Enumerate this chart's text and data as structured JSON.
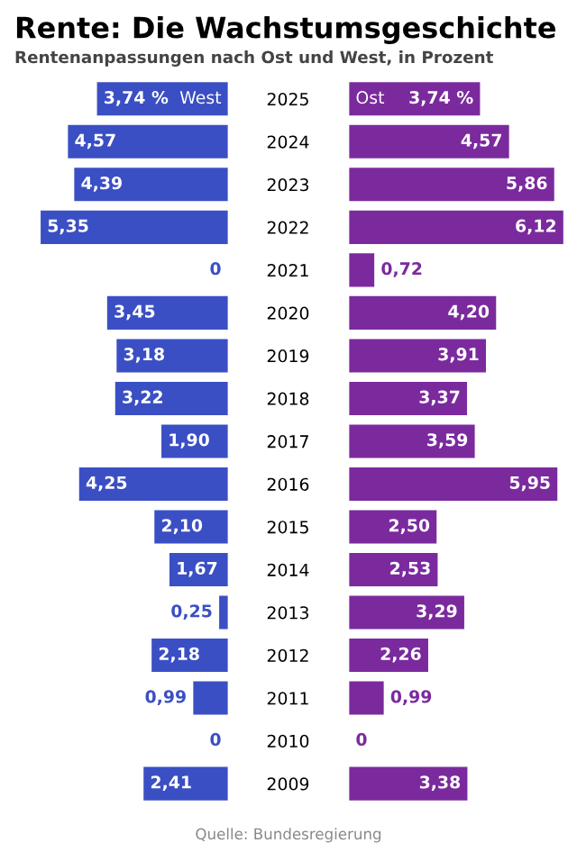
{
  "chart_data": [
    {
      "type": "bar",
      "orientation": "horizontal",
      "title": "Rente: Die Wachstumsgeschichte",
      "subtitle": "Rentenanpassungen nach Ost und West, in Prozent",
      "categories": [
        "2025",
        "2024",
        "2023",
        "2022",
        "2021",
        "2020",
        "2019",
        "2018",
        "2017",
        "2016",
        "2015",
        "2014",
        "2013",
        "2012",
        "2011",
        "2010",
        "2009"
      ],
      "tick_labels": "y",
      "legend": false,
      "grid": false,
      "series": [
        {
          "name": "West",
          "color": "#3b4fc4",
          "values": [
            3.74,
            4.57,
            4.39,
            5.35,
            0,
            3.45,
            3.18,
            3.22,
            1.9,
            4.25,
            2.1,
            1.67,
            0.25,
            2.18,
            0.99,
            0,
            2.41
          ],
          "value_labels": [
            "3,74 %",
            "4,57",
            "4,39",
            "5,35",
            "0",
            "3,45",
            "3,18",
            "3,22",
            "1,90",
            "4,25",
            "2,10",
            "1,67",
            "0,25",
            "2,18",
            "0,99",
            "0",
            "2,41"
          ]
        }
      ]
    },
    {
      "type": "bar",
      "orientation": "horizontal",
      "categories": [
        "2025",
        "2024",
        "2023",
        "2022",
        "2021",
        "2020",
        "2019",
        "2018",
        "2017",
        "2016",
        "2015",
        "2014",
        "2013",
        "2012",
        "2011",
        "2010",
        "2009"
      ],
      "tick_labels": false,
      "legend": false,
      "grid": false,
      "series": [
        {
          "name": "Ost",
          "color": "#7b2a9e",
          "values": [
            3.74,
            4.57,
            5.86,
            6.12,
            0.72,
            4.2,
            3.91,
            3.37,
            3.59,
            5.95,
            2.5,
            2.53,
            3.29,
            2.26,
            0.99,
            0,
            3.38
          ],
          "value_labels": [
            "3,74 %",
            "4,57",
            "5,86",
            "6,12",
            "0,72",
            "4,20",
            "3,91",
            "3,37",
            "3,59",
            "5,95",
            "2,50",
            "2,53",
            "3,29",
            "2,26",
            "0,99",
            "0",
            "3,38"
          ]
        }
      ],
      "annotations": [
        "Quelle: Bundesregierung"
      ]
    }
  ]
}
